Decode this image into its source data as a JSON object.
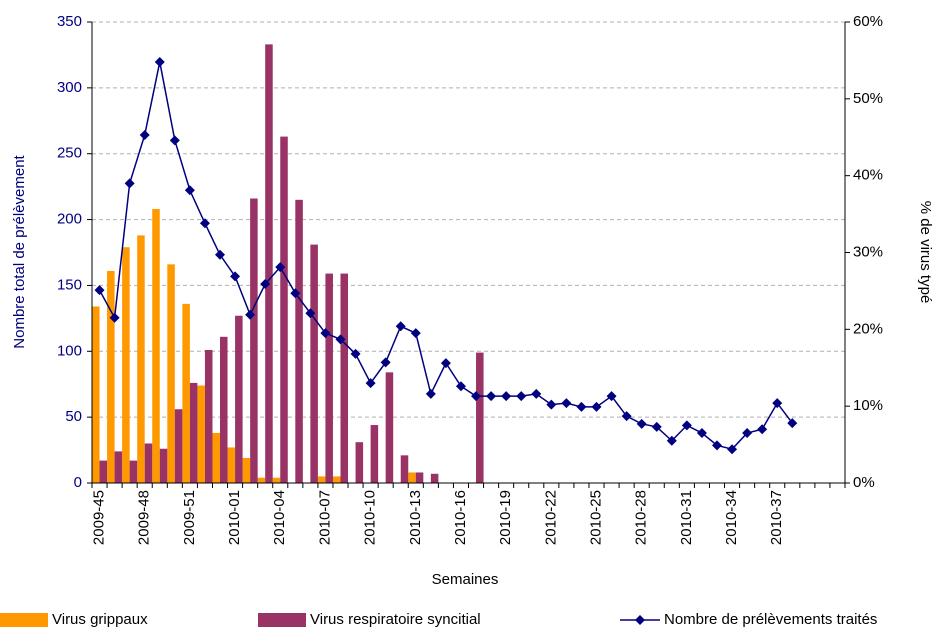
{
  "chart_data": {
    "type": "bar-line",
    "x_label": "Semaines",
    "y_label": "Nombre total de prélèvement",
    "y2_label": "% de virus typé",
    "categories": [
      "2009-45",
      null,
      null,
      "2009-48",
      null,
      null,
      "2009-51",
      null,
      null,
      "2010-01",
      null,
      null,
      "2010-04",
      null,
      null,
      "2010-07",
      null,
      null,
      "2010-10",
      null,
      null,
      "2010-13",
      null,
      null,
      "2010-16",
      null,
      null,
      "2010-19",
      null,
      null,
      "2010-22",
      null,
      null,
      "2010-25",
      null,
      null,
      "2010-28",
      null,
      null,
      "2010-31",
      null,
      null,
      "2010-34",
      null,
      null,
      "2010-37",
      null,
      null,
      null,
      null
    ],
    "series": [
      {
        "name": "Virus grippaux",
        "type": "bar",
        "color": "#ff9900",
        "values": [
          134,
          161,
          179,
          188,
          208,
          166,
          136,
          74,
          38,
          27,
          19,
          4,
          4,
          0,
          0,
          5,
          5,
          0,
          0,
          0,
          0,
          8,
          0,
          0,
          0,
          0,
          0,
          0,
          0,
          0,
          0,
          0,
          0,
          0,
          0,
          0,
          0,
          0,
          0,
          0,
          0,
          0,
          0,
          0,
          0,
          0,
          0,
          0,
          0,
          0
        ]
      },
      {
        "name": "Virus respiratoire syncitial",
        "type": "bar",
        "color": "#993366",
        "values": [
          17,
          24,
          17,
          30,
          26,
          56,
          76,
          101,
          111,
          127,
          216,
          333,
          263,
          215,
          181,
          159,
          159,
          31,
          44,
          84,
          21,
          8,
          7,
          0,
          0,
          99,
          0,
          0,
          0,
          0,
          0,
          0,
          0,
          0,
          0,
          0,
          0,
          0,
          0,
          0,
          0,
          0,
          0,
          0,
          0,
          0,
          0,
          0,
          0,
          0
        ]
      },
      {
        "name": "Nombre de prélèvements traités",
        "type": "line",
        "axis": "y2",
        "color": "#000080",
        "values": [
          25.1,
          21.5,
          39.0,
          45.3,
          54.8,
          44.6,
          38.1,
          33.8,
          29.7,
          26.9,
          21.9,
          25.9,
          28.1,
          24.7,
          22.1,
          19.5,
          18.7,
          16.8,
          13.0,
          15.7,
          20.4,
          19.5,
          11.6,
          15.6,
          12.6,
          11.3,
          11.3,
          11.3,
          11.3,
          11.6,
          10.2,
          10.4,
          9.9,
          9.9,
          11.3,
          8.7,
          7.7,
          7.3,
          5.5,
          7.5,
          6.5,
          4.9,
          4.4,
          6.5,
          7.0,
          10.4,
          7.8,
          null,
          null,
          null
        ]
      }
    ],
    "ylim": [
      0,
      350
    ],
    "yticks": [
      0,
      50,
      100,
      150,
      200,
      250,
      300,
      350
    ],
    "y2lim": [
      0,
      60
    ],
    "y2ticks": [
      {
        "value": 0,
        "label": "0%"
      },
      {
        "value": 10,
        "label": "10%"
      },
      {
        "value": 20,
        "label": "20%"
      },
      {
        "value": 30,
        "label": "30%"
      },
      {
        "value": 40,
        "label": "40%"
      },
      {
        "value": 50,
        "label": "50%"
      },
      {
        "value": 60,
        "label": "60%"
      }
    ],
    "grid": true,
    "legend": "bottom"
  }
}
